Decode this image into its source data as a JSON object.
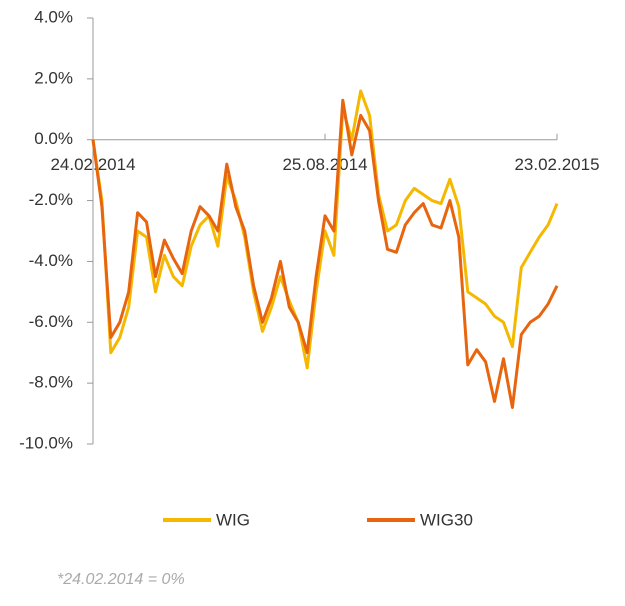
{
  "chart_data": {
    "type": "line",
    "x": [
      "2014-02-24",
      "2014-03-03",
      "2014-03-10",
      "2014-03-17",
      "2014-03-24",
      "2014-03-31",
      "2014-04-07",
      "2014-04-14",
      "2014-04-21",
      "2014-04-28",
      "2014-05-05",
      "2014-05-12",
      "2014-05-19",
      "2014-05-26",
      "2014-06-02",
      "2014-06-09",
      "2014-06-16",
      "2014-06-23",
      "2014-06-30",
      "2014-07-07",
      "2014-07-14",
      "2014-07-21",
      "2014-07-28",
      "2014-08-04",
      "2014-08-11",
      "2014-08-18",
      "2014-08-25",
      "2014-09-01",
      "2014-09-08",
      "2014-09-15",
      "2014-09-22",
      "2014-09-29",
      "2014-10-06",
      "2014-10-13",
      "2014-10-20",
      "2014-10-27",
      "2014-11-03",
      "2014-11-10",
      "2014-11-17",
      "2014-11-24",
      "2014-12-01",
      "2014-12-08",
      "2014-12-15",
      "2014-12-22",
      "2014-12-29",
      "2015-01-05",
      "2015-01-12",
      "2015-01-19",
      "2015-01-26",
      "2015-02-02",
      "2015-02-09",
      "2015-02-16",
      "2015-02-23"
    ],
    "series": [
      {
        "name": "WIG",
        "color": "#f5b800",
        "values": [
          0,
          -2.0,
          -7.0,
          -6.5,
          -5.5,
          -3.0,
          -3.2,
          -5.0,
          -3.8,
          -4.5,
          -4.8,
          -3.5,
          -2.8,
          -2.5,
          -3.5,
          -1.2,
          -2.0,
          -3.2,
          -5.0,
          -6.3,
          -5.5,
          -4.5,
          -5.3,
          -6.0,
          -7.5,
          -5.0,
          -3.0,
          -3.8,
          1.0,
          0.0,
          1.6,
          0.8,
          -1.8,
          -3.0,
          -2.8,
          -2.0,
          -1.6,
          -1.8,
          -2.0,
          -2.1,
          -1.3,
          -2.2,
          -5.0,
          -5.2,
          -5.4,
          -5.8,
          -6.0,
          -6.8,
          -4.2,
          -3.7,
          -3.2,
          -2.8,
          -2.1
        ]
      },
      {
        "name": "WIG30",
        "color": "#e8650f",
        "values": [
          0,
          -2.2,
          -6.5,
          -6.0,
          -5.0,
          -2.4,
          -2.7,
          -4.5,
          -3.3,
          -3.9,
          -4.4,
          -3.0,
          -2.2,
          -2.5,
          -3.0,
          -0.8,
          -2.2,
          -3.0,
          -4.8,
          -6.0,
          -5.2,
          -4.0,
          -5.5,
          -6.0,
          -7.0,
          -4.5,
          -2.5,
          -3.0,
          1.3,
          -0.5,
          0.8,
          0.3,
          -2.0,
          -3.6,
          -3.7,
          -2.8,
          -2.4,
          -2.1,
          -2.8,
          -2.9,
          -2.0,
          -3.2,
          -7.4,
          -6.9,
          -7.3,
          -8.6,
          -7.2,
          -8.8,
          -6.4,
          -6.0,
          -5.8,
          -5.4,
          -4.8
        ]
      }
    ],
    "xlim": [
      "2014-02-24",
      "2015-02-23"
    ],
    "xticks": [
      {
        "value": "2014-02-24",
        "label": "24.02.2014"
      },
      {
        "value": "2014-08-25",
        "label": "25.08.2014"
      },
      {
        "value": "2015-02-23",
        "label": "23.02.2015"
      }
    ],
    "ylim": [
      -10,
      4
    ],
    "yticks": [
      {
        "value": 4,
        "label": "4.0%"
      },
      {
        "value": 2,
        "label": "2.0%"
      },
      {
        "value": 0,
        "label": "0.0%"
      },
      {
        "value": -2,
        "label": "-2.0%"
      },
      {
        "value": -4,
        "label": "-4.0%"
      },
      {
        "value": -6,
        "label": "-6.0%"
      },
      {
        "value": -8,
        "label": "-8.0%"
      },
      {
        "value": -10,
        "label": "-10.0%"
      }
    ],
    "legend": "bottom",
    "note": "*24.02.2014 = 0%"
  }
}
